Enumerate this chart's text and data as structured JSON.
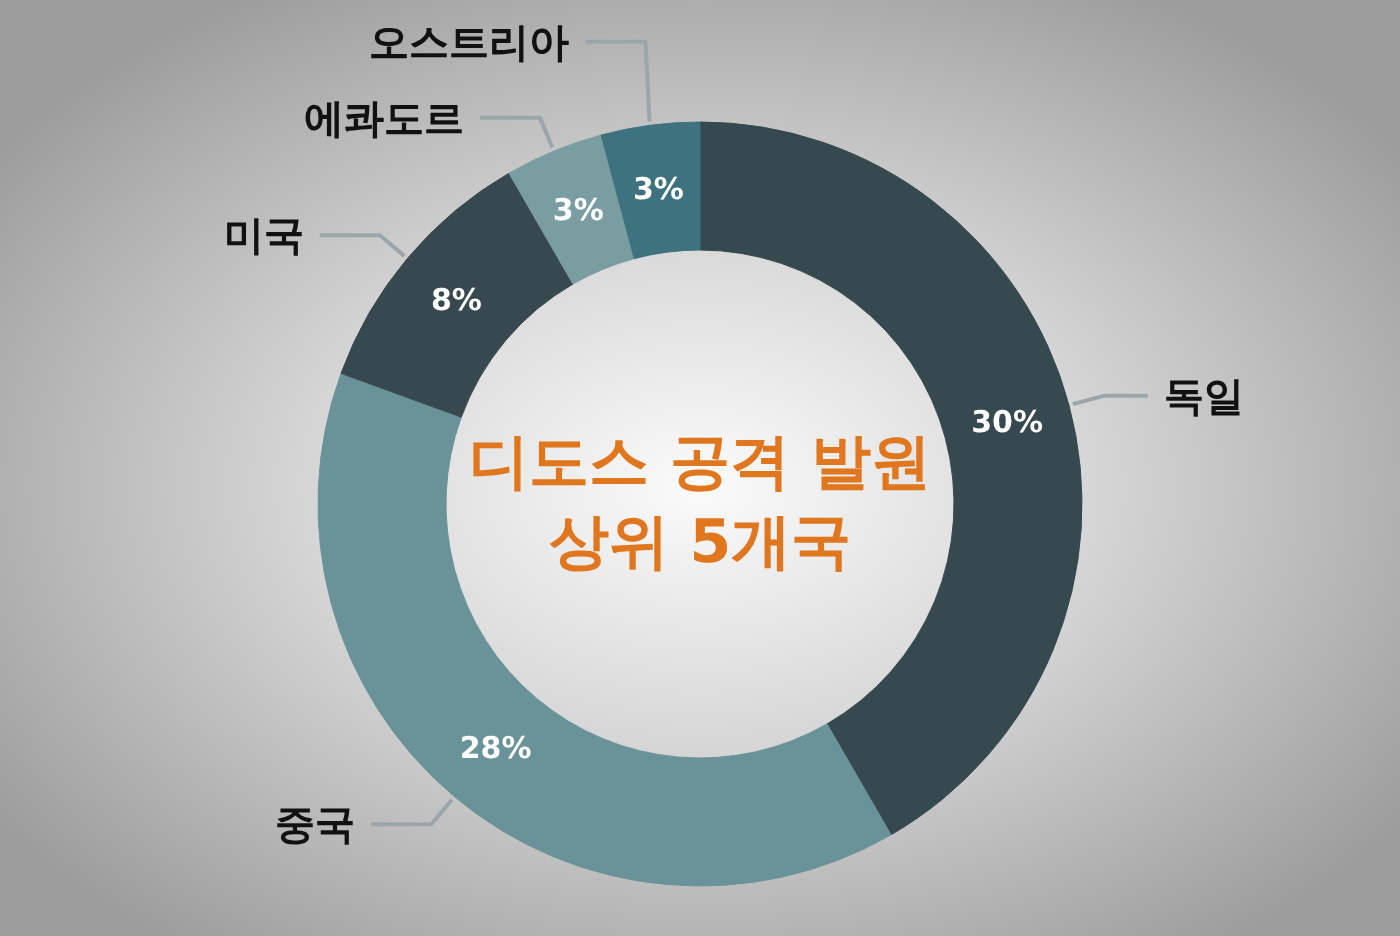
{
  "chart_data": {
    "type": "donut",
    "title": "디도스 공격 발원 상위 5개국",
    "categories": [
      "독일",
      "중국",
      "미국",
      "에콰도르",
      "오스트리아"
    ],
    "values": [
      30,
      28,
      8,
      3,
      3
    ],
    "colors": [
      "#36494f",
      "#6a9399",
      "#37494f",
      "#7a9da2",
      "#3e727e"
    ],
    "value_labels": [
      "30%",
      "28%",
      "8%",
      "3%",
      "3%"
    ]
  }
}
